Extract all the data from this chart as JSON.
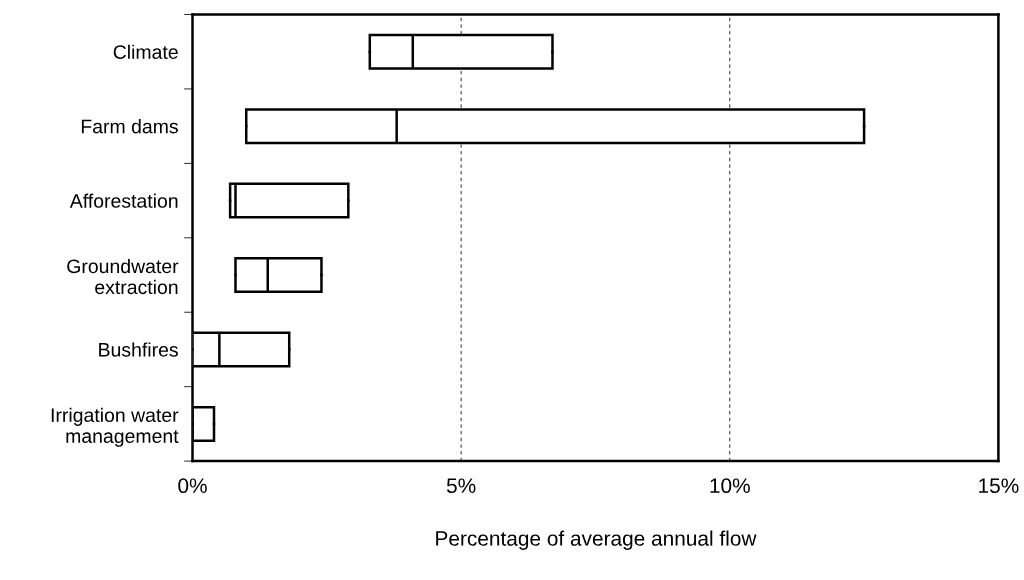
{
  "chart_data": {
    "type": "box",
    "orientation": "horizontal",
    "categories": [
      "Climate",
      "Farm dams",
      "Afforestation",
      "Groundwater\nextraction",
      "Bushfires",
      "Irrigation water\nmanagement"
    ],
    "boxes": [
      {
        "low": 3.3,
        "q1": 3.3,
        "median": 4.1,
        "q3": 6.7,
        "high": 6.7
      },
      {
        "low": 1.0,
        "q1": 1.0,
        "median": 3.8,
        "q3": 12.5,
        "high": 12.5
      },
      {
        "low": 0.7,
        "q1": 0.7,
        "median": 0.8,
        "q3": 2.9,
        "high": 2.9
      },
      {
        "low": 0.8,
        "q1": 0.8,
        "median": 1.4,
        "q3": 2.4,
        "high": 2.4
      },
      {
        "low": 0,
        "q1": 0,
        "median": 0.5,
        "q3": 1.8,
        "high": 1.8
      },
      {
        "low": 0,
        "q1": 0,
        "median": 0,
        "q3": 0.4,
        "high": 0.4
      }
    ],
    "color": "#ffffff",
    "xlim": [
      0,
      15
    ],
    "xticks": [
      {
        "value": 0,
        "label": "0%"
      },
      {
        "value": 5,
        "label": "5%"
      },
      {
        "value": 10,
        "label": "10%"
      },
      {
        "value": 15,
        "label": "15%"
      }
    ],
    "xlabel": "Percentage of average annual flow",
    "grid": "x"
  }
}
